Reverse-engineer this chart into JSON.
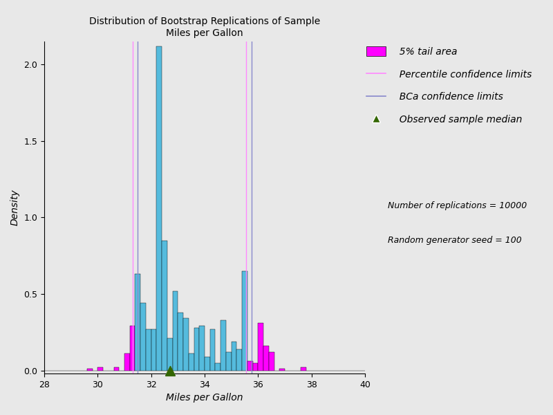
{
  "title_line1": "Distribution of Bootstrap Replications of Sample",
  "title_line2": "Miles per Gallon",
  "xlabel": "Miles per Gallon",
  "ylabel": "Density",
  "xlim": [
    28,
    40
  ],
  "ylim": [
    -0.02,
    2.15
  ],
  "yticks": [
    0.0,
    0.5,
    1.0,
    1.5,
    2.0
  ],
  "xticks": [
    28,
    30,
    32,
    34,
    36,
    38,
    40
  ],
  "background_color": "#e8e8e8",
  "plot_background_color": "#e8e8e8",
  "percentile_limits": [
    31.3,
    35.55
  ],
  "bca_limits": [
    31.5,
    35.75
  ],
  "observed_median": 32.7,
  "percentile_color": "#ff88ff",
  "bca_color": "#8888cc",
  "tail_color": "#ff00ff",
  "bar_color": "#55bbdd",
  "median_color": "#336600",
  "n_replications": 10000,
  "seed": 100,
  "legend_label_tail": "  5% tail area",
  "legend_label_percentile": "  Percentile confidence limits",
  "legend_label_bca": "  BCa confidence limits",
  "legend_label_median": "  Observed sample median",
  "legend_text1": "   Number of replications = 10000",
  "legend_text2": "   Random generator seed = 100",
  "hist_bins": [
    28.0,
    28.2,
    28.4,
    28.6,
    28.8,
    29.0,
    29.2,
    29.4,
    29.6,
    29.8,
    30.0,
    30.2,
    30.4,
    30.6,
    30.8,
    31.0,
    31.2,
    31.4,
    31.6,
    31.8,
    32.0,
    32.2,
    32.4,
    32.6,
    32.8,
    33.0,
    33.2,
    33.4,
    33.6,
    33.8,
    34.0,
    34.2,
    34.4,
    34.6,
    34.8,
    35.0,
    35.2,
    35.4,
    35.6,
    35.8,
    36.0,
    36.2,
    36.4,
    36.6,
    36.8,
    37.0,
    37.2,
    37.4,
    37.6,
    37.8,
    38.0,
    38.2,
    38.4,
    38.6,
    38.8,
    39.0,
    39.2,
    39.4,
    39.6,
    39.8
  ],
  "hist_heights": [
    0.0,
    0.0,
    0.0,
    0.0,
    0.0,
    0.0,
    0.0,
    0.0,
    0.01,
    0.0,
    0.02,
    0.0,
    0.0,
    0.02,
    0.0,
    0.11,
    0.29,
    0.63,
    0.44,
    0.27,
    0.27,
    2.12,
    0.85,
    0.21,
    0.52,
    0.38,
    0.34,
    0.11,
    0.28,
    0.29,
    0.09,
    0.27,
    0.05,
    0.33,
    0.12,
    0.19,
    0.14,
    0.65,
    0.06,
    0.05,
    0.31,
    0.16,
    0.12,
    0.0,
    0.01,
    0.0,
    0.0,
    0.0,
    0.02,
    0.0,
    0.0,
    0.0,
    0.0,
    0.0,
    0.0,
    0.0,
    0.0,
    0.0,
    0.0,
    0.0
  ]
}
